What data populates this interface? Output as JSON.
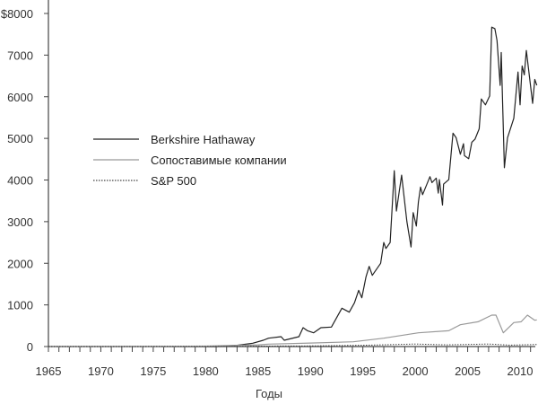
{
  "chart_data": {
    "type": "line",
    "title": "",
    "xlabel": "Годы",
    "ylabel": "",
    "xlim": [
      1965,
      2011.6
    ],
    "ylim": [
      0,
      8000
    ],
    "grid": false,
    "legend_position": "left-middle",
    "x_ticks": [
      "1965",
      "1970",
      "1975",
      "1980",
      "1985",
      "1990",
      "1995",
      "2000",
      "2005",
      "2010"
    ],
    "y_ticks": [
      "0",
      "1000",
      "2000",
      "3000",
      "4000",
      "5000",
      "6000",
      "7000",
      "$8000"
    ],
    "series": [
      {
        "name": "Berkshire Hathaway",
        "color": "#222222",
        "style": "solid",
        "x": [
          1965,
          1981,
          1983,
          1984.5,
          1985.5,
          1986,
          1987.2,
          1987.5,
          1988.9,
          1989.3,
          1989.7,
          1990.3,
          1991,
          1992,
          1993,
          1993.7,
          1994.2,
          1994.6,
          1994.9,
          1995.3,
          1995.6,
          1995.9,
          1996.7,
          1997,
          1997.2,
          1997.6,
          1998,
          1998.2,
          1998.7,
          1999.2,
          1999.6,
          1999.8,
          2000.1,
          2000.3,
          2000.5,
          2000.7,
          2001.4,
          2001.6,
          2002,
          2002.2,
          2002.3,
          2002.6,
          2002.7,
          2003.2,
          2003.4,
          2003.6,
          2003.9,
          2004.3,
          2004.6,
          2004.7,
          2005.1,
          2005.4,
          2005.7,
          2006.1,
          2006.3,
          2006.7,
          2007.1,
          2007.3,
          2007.6,
          2007.8,
          2008.1,
          2008.2,
          2008.5,
          2008.8,
          2009.4,
          2009.8,
          2010,
          2010.2,
          2010.4,
          2010.6,
          2011.2,
          2011.4,
          2011.6
        ],
        "y": [
          0,
          0,
          30,
          80,
          150,
          200,
          237,
          150,
          237,
          453,
          381,
          330,
          453,
          467,
          920,
          826,
          1050,
          1350,
          1170,
          1675,
          1925,
          1710,
          2000,
          2500,
          2355,
          2500,
          4224,
          3254,
          4116,
          3000,
          2392,
          3218,
          2894,
          3470,
          3830,
          3649,
          4080,
          3937,
          4045,
          3685,
          4009,
          3399,
          3900,
          4009,
          4584,
          5123,
          5015,
          4618,
          4871,
          4584,
          4511,
          4907,
          4978,
          5230,
          5948,
          5804,
          6019,
          7672,
          7636,
          7349,
          6272,
          7062,
          4296,
          5015,
          5481,
          6595,
          5804,
          6739,
          6524,
          7112,
          5840,
          6416,
          6272
        ]
      },
      {
        "name": "Сопоставимые компании",
        "color": "#999999",
        "style": "solid",
        "x": [
          1965,
          1975,
          1980,
          1985,
          1986,
          1990,
          1994.1,
          1997,
          2000.3,
          2003.2,
          2004.3,
          2006,
          2007.3,
          2007.7,
          2008.4,
          2009.4,
          2010.1,
          2010.7,
          2011.4,
          2011.6
        ],
        "y": [
          0,
          3,
          10,
          40,
          58,
          85,
          115,
          200,
          330,
          380,
          525,
          596,
          754,
          754,
          330,
          575,
          596,
          754,
          632,
          640
        ]
      },
      {
        "name": "S&P 500",
        "color": "#444444",
        "style": "dotted",
        "x": [
          1965,
          1980,
          1985,
          1990,
          1995,
          2000,
          2003,
          2007,
          2009,
          2011.6
        ],
        "y": [
          0,
          3,
          10,
          15,
          30,
          60,
          40,
          60,
          35,
          50
        ]
      }
    ]
  }
}
